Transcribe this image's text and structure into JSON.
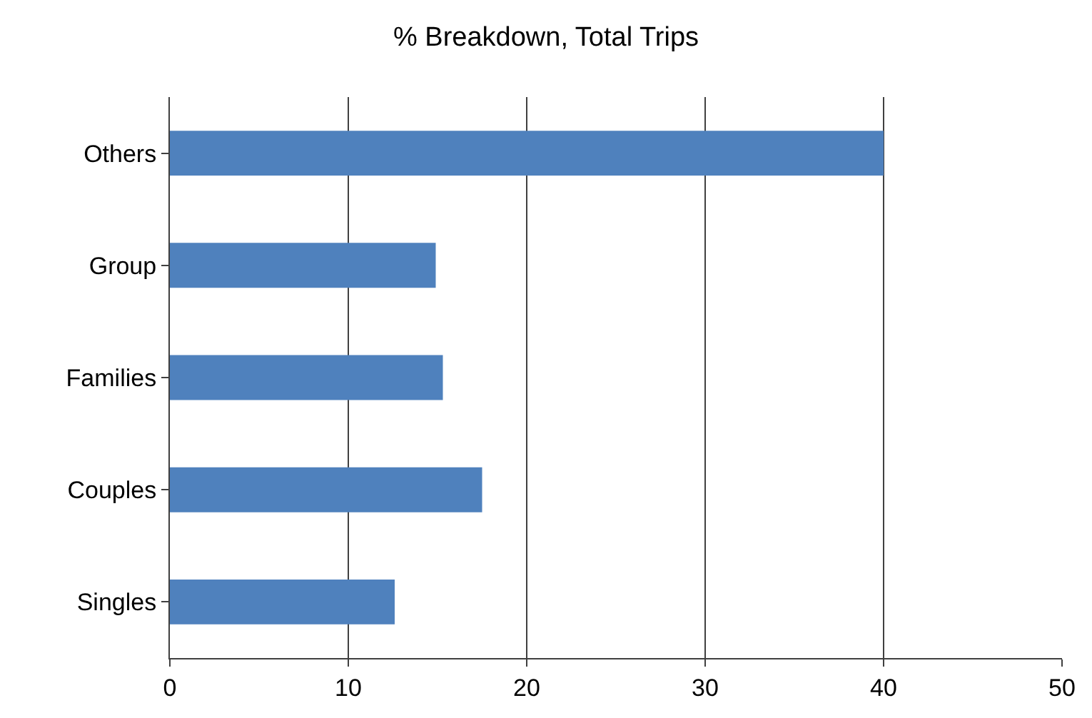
{
  "chart_data": {
    "type": "bar",
    "orientation": "horizontal",
    "title": "% Breakdown, Total Trips",
    "categories": [
      "Others",
      "Group",
      "Families",
      "Couples",
      "Singles"
    ],
    "values": [
      40,
      14.9,
      15.3,
      17.5,
      12.6
    ],
    "color": "#4f81bd",
    "xlim": [
      0,
      50
    ],
    "xticks": [
      0,
      10,
      20,
      30,
      40,
      50
    ],
    "grid": "x",
    "legend": false
  }
}
